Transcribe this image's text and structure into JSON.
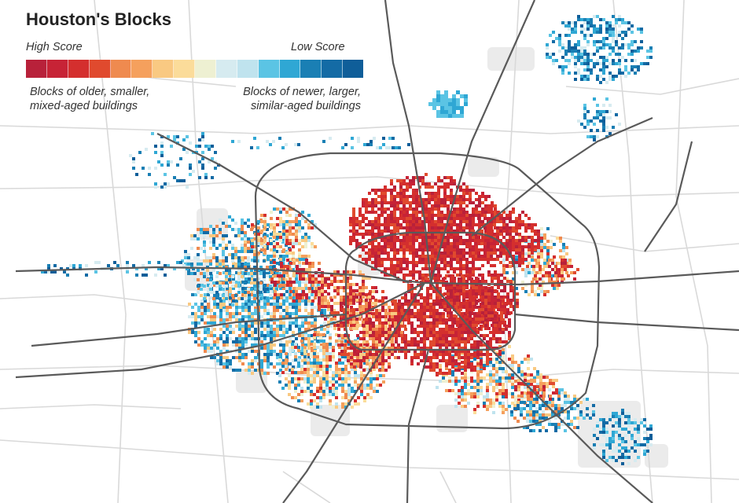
{
  "title": "Houston's Blocks",
  "legend": {
    "high_label": "High Score",
    "low_label": "Low Score",
    "left_desc_line1": "Blocks of older, smaller,",
    "left_desc_line2": "mixed-aged buildings",
    "right_desc_line1": "Blocks of newer, larger,",
    "right_desc_line2": "similar-aged buildings",
    "swatches": [
      "#b8213a",
      "#c72336",
      "#d42f2e",
      "#e04a2e",
      "#ef8a4f",
      "#f5a05d",
      "#f9c982",
      "#fbdc9a",
      "#eef0d2",
      "#d6ebf0",
      "#bfe3ee",
      "#5bc4e4",
      "#2fa7d4",
      "#1a7fb4",
      "#146ba5",
      "#0f5e99"
    ]
  },
  "colors": {
    "road_major": "#5a5a5a",
    "road_minor": "#d9d9d9",
    "gray_area": "#ebebeb"
  }
}
